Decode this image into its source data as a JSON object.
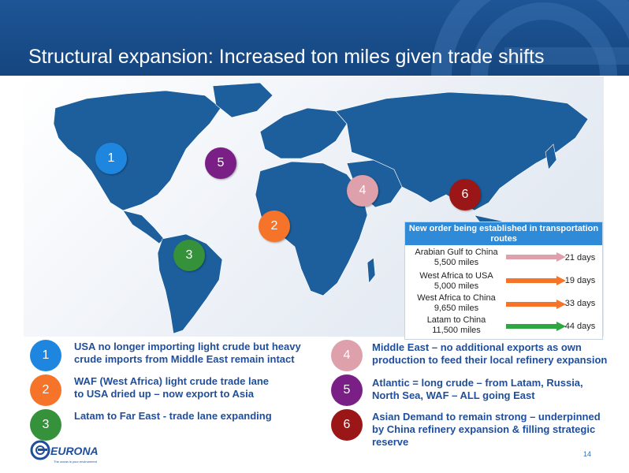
{
  "slide": {
    "title": "Structural expansion: Increased ton miles given trade shifts",
    "page_number": "14"
  },
  "map_markers": [
    {
      "label": "1",
      "color": "#1f86e0"
    },
    {
      "label": "5",
      "color": "#7a1f86"
    },
    {
      "label": "4",
      "color": "#dea0aa"
    },
    {
      "label": "6",
      "color": "#9b1717"
    },
    {
      "label": "2",
      "color": "#f5742a"
    },
    {
      "label": "3",
      "color": "#35913a"
    }
  ],
  "routes": {
    "header": "New order being established in transportation routes",
    "items": [
      {
        "from_to": "Arabian Gulf to China",
        "miles": "5,500 miles",
        "days": "21 days",
        "color": "#dea0aa"
      },
      {
        "from_to": "West Africa to USA",
        "miles": "5,000 miles",
        "days": "19 days",
        "color": "#f5742a"
      },
      {
        "from_to": "West Africa to China",
        "miles": "9,650 miles",
        "days": "33 days",
        "color": "#f5742a"
      },
      {
        "from_to": "Latam to China",
        "miles": "11,500 miles",
        "days": "44 days",
        "color": "#2ea641"
      }
    ]
  },
  "notes": [
    {
      "number": "1",
      "color": "#1f86e0",
      "text_lines": [
        "USA no longer importing light crude but heavy",
        "crude imports from Middle East remain intact"
      ]
    },
    {
      "number": "2",
      "color": "#f5742a",
      "text_lines": [
        "WAF (West Africa) light crude trade lane",
        "to USA dried up – now export to Asia"
      ]
    },
    {
      "number": "3",
      "color": "#35913a",
      "text_lines": [
        "Latam to Far East - trade lane expanding"
      ]
    },
    {
      "number": "4",
      "color": "#dea0aa",
      "text_lines": [
        "Middle East – no additional exports as own",
        "production to feed their local refinery expansion"
      ]
    },
    {
      "number": "5",
      "color": "#7a1f86",
      "text_lines": [
        "Atlantic = long crude – from Latam, Russia,",
        "North Sea, WAF – ALL going East"
      ]
    },
    {
      "number": "6",
      "color": "#9b1717",
      "text_lines": [
        "Asian Demand to remain strong – underpinned",
        "by China refinery expansion & filling strategic",
        "reserve"
      ]
    }
  ],
  "logo": {
    "name": "EURONAV",
    "tagline": "The ocean is your environment"
  }
}
